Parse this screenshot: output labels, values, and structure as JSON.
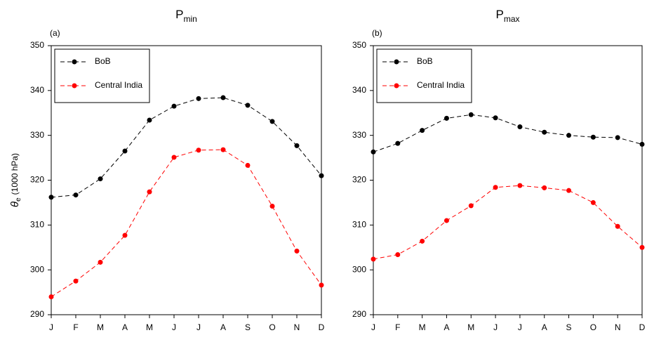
{
  "chart_data": [
    {
      "type": "line",
      "title": "P",
      "title_subscript": "min",
      "panel_label": "(a)",
      "ylabel": {
        "symbol": "θ",
        "subscript": "e",
        "text": "(1000 hPa)"
      },
      "categories": [
        "J",
        "F",
        "M",
        "A",
        "M",
        "J",
        "J",
        "A",
        "S",
        "O",
        "N",
        "D"
      ],
      "series": [
        {
          "name": "BoB",
          "color": "#000000",
          "values": [
            316.2,
            316.7,
            320.3,
            326.5,
            333.4,
            336.5,
            338.2,
            338.4,
            336.7,
            333.1,
            327.7,
            321.0
          ]
        },
        {
          "name": "Central India",
          "color": "#ff0000",
          "values": [
            294.0,
            297.5,
            301.7,
            307.7,
            317.4,
            325.1,
            326.7,
            326.8,
            323.3,
            314.2,
            304.2,
            296.6
          ]
        }
      ],
      "ylim": [
        290,
        350
      ],
      "yticks": [
        290,
        300,
        310,
        320,
        330,
        340,
        350
      ],
      "legend": "upper left"
    },
    {
      "type": "line",
      "title": "P",
      "title_subscript": "max",
      "panel_label": "(b)",
      "categories": [
        "J",
        "F",
        "M",
        "A",
        "M",
        "J",
        "J",
        "A",
        "S",
        "O",
        "N",
        "D"
      ],
      "series": [
        {
          "name": "BoB",
          "color": "#000000",
          "values": [
            326.3,
            328.2,
            331.1,
            333.8,
            334.6,
            333.9,
            331.9,
            330.7,
            330.0,
            329.6,
            329.5,
            328.0
          ]
        },
        {
          "name": "Central India",
          "color": "#ff0000",
          "values": [
            302.4,
            303.4,
            306.4,
            311.0,
            314.3,
            318.4,
            318.8,
            318.3,
            317.7,
            315.0,
            309.7,
            305.0
          ]
        }
      ],
      "ylim": [
        290,
        350
      ],
      "yticks": [
        290,
        300,
        310,
        320,
        330,
        340,
        350
      ],
      "legend": "upper left"
    }
  ]
}
